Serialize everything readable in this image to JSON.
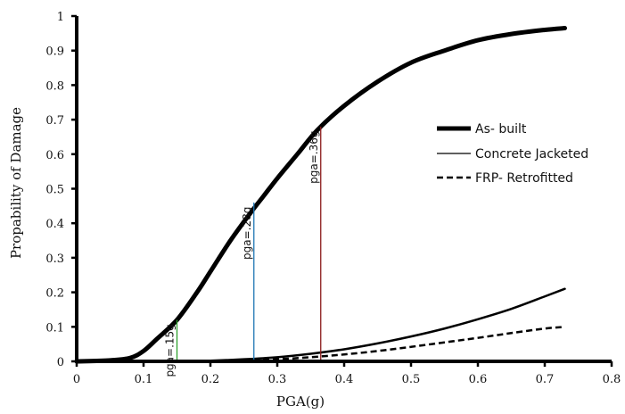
{
  "chart_data": {
    "type": "line",
    "xlabel": "PGA(g)",
    "ylabel": "Propability of Damage",
    "xlim": [
      0,
      0.8
    ],
    "ylim": [
      0,
      1
    ],
    "xticks": [
      "0",
      "0.1",
      "0.2",
      "0.3",
      "0.4",
      "0.5",
      "0.6",
      "0.7",
      "0.8"
    ],
    "yticks": [
      "0",
      "0.1",
      "0.2",
      "0.3",
      "0.4",
      "0.5",
      "0.6",
      "0.7",
      "0.8",
      "0.9",
      "1"
    ],
    "grid": false,
    "legend_position": "right",
    "series": [
      {
        "name": "As- built",
        "style": "thick",
        "color": "#000000",
        "x": [
          0.0,
          0.05,
          0.08,
          0.1,
          0.12,
          0.15,
          0.18,
          0.2,
          0.23,
          0.26,
          0.28,
          0.3,
          0.33,
          0.36,
          0.4,
          0.45,
          0.5,
          0.55,
          0.6,
          0.65,
          0.7,
          0.73
        ],
        "y": [
          0.0,
          0.003,
          0.01,
          0.03,
          0.065,
          0.12,
          0.2,
          0.26,
          0.35,
          0.43,
          0.48,
          0.53,
          0.6,
          0.67,
          0.74,
          0.81,
          0.865,
          0.9,
          0.93,
          0.948,
          0.96,
          0.965
        ]
      },
      {
        "name": "Concrete Jacketed",
        "style": "thin",
        "color": "#000000",
        "x": [
          0.0,
          0.1,
          0.15,
          0.2,
          0.25,
          0.3,
          0.35,
          0.4,
          0.45,
          0.5,
          0.55,
          0.6,
          0.65,
          0.7,
          0.73
        ],
        "y": [
          0.0,
          0.0,
          0.0,
          0.002,
          0.006,
          0.012,
          0.022,
          0.035,
          0.052,
          0.072,
          0.095,
          0.122,
          0.152,
          0.188,
          0.21
        ]
      },
      {
        "name": "FRP- Retrofitted",
        "style": "dashed",
        "color": "#000000",
        "x": [
          0.0,
          0.2,
          0.25,
          0.3,
          0.35,
          0.4,
          0.45,
          0.5,
          0.55,
          0.6,
          0.65,
          0.7,
          0.73
        ],
        "y": [
          0.0,
          0.0,
          0.002,
          0.006,
          0.012,
          0.02,
          0.03,
          0.042,
          0.055,
          0.068,
          0.082,
          0.095,
          0.1
        ]
      }
    ],
    "annotations": [
      {
        "text": "pga=.15g",
        "x": 0.15,
        "y": 0.12,
        "color": "#2ca02c"
      },
      {
        "text": "pga=.28g",
        "x": 0.265,
        "y": 0.46,
        "color": "#1f77b4"
      },
      {
        "text": "pga=.36g",
        "x": 0.365,
        "y": 0.68,
        "color": "#8b1a1a"
      }
    ]
  }
}
